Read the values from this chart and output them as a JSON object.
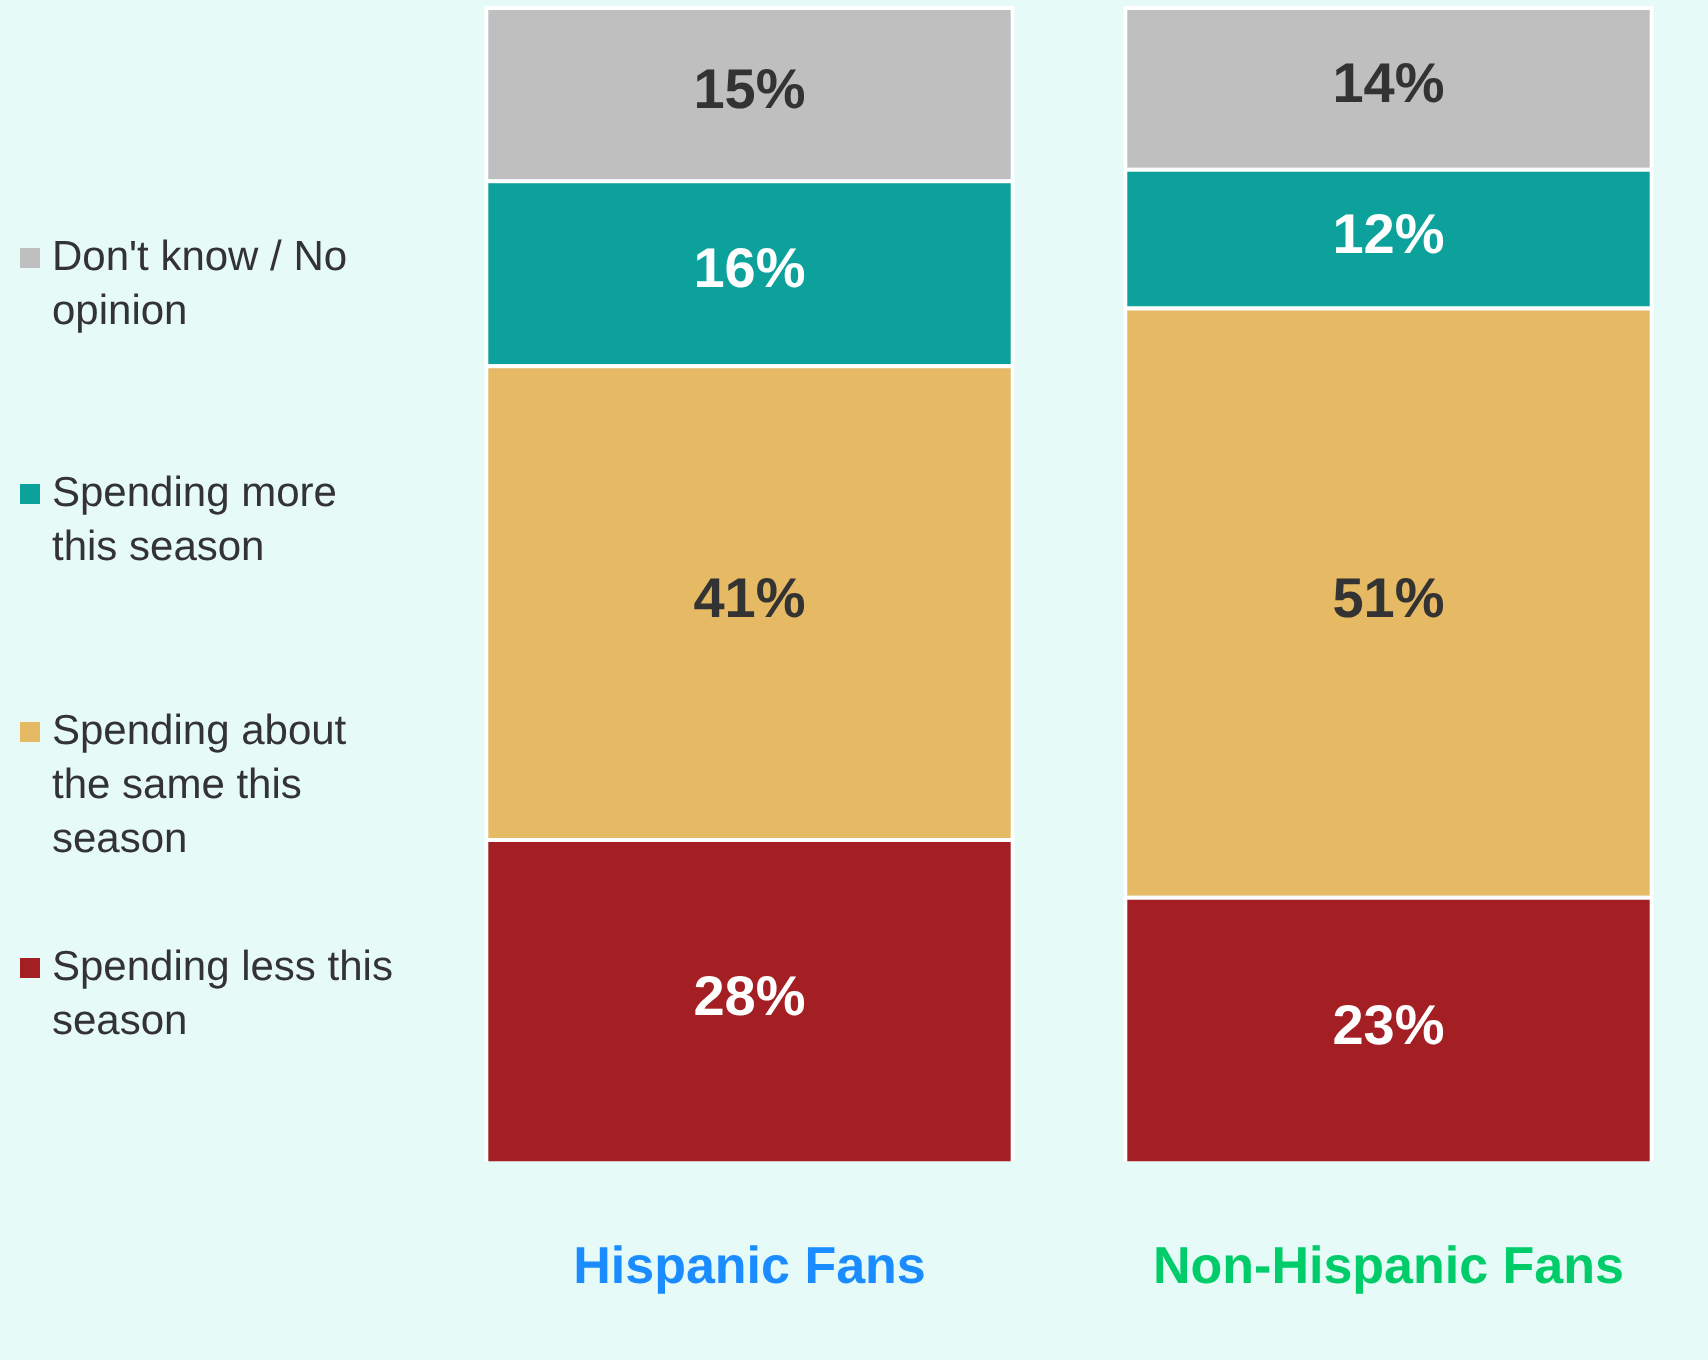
{
  "chart_data": {
    "type": "bar",
    "stacked": true,
    "categories": [
      "Hispanic Fans",
      "Non-Hispanic Fans"
    ],
    "legend": "left",
    "series": [
      {
        "name": "Spending less this season",
        "color": "#a31f24",
        "values": [
          28,
          23
        ],
        "value_labels": [
          "28%",
          "23%"
        ]
      },
      {
        "name": "Spending about the same this season",
        "color": "#e6ba64",
        "values": [
          41,
          51
        ],
        "value_labels": [
          "41%",
          "51%"
        ]
      },
      {
        "name": "Spending more this season",
        "color": "#0ca19b",
        "values": [
          16,
          12
        ],
        "value_labels": [
          "16%",
          "12%"
        ]
      },
      {
        "name": "Don't know / No opinion",
        "color": "#bfbfbf",
        "values": [
          15,
          14
        ],
        "value_labels": [
          "15%",
          "14%"
        ]
      }
    ]
  }
}
